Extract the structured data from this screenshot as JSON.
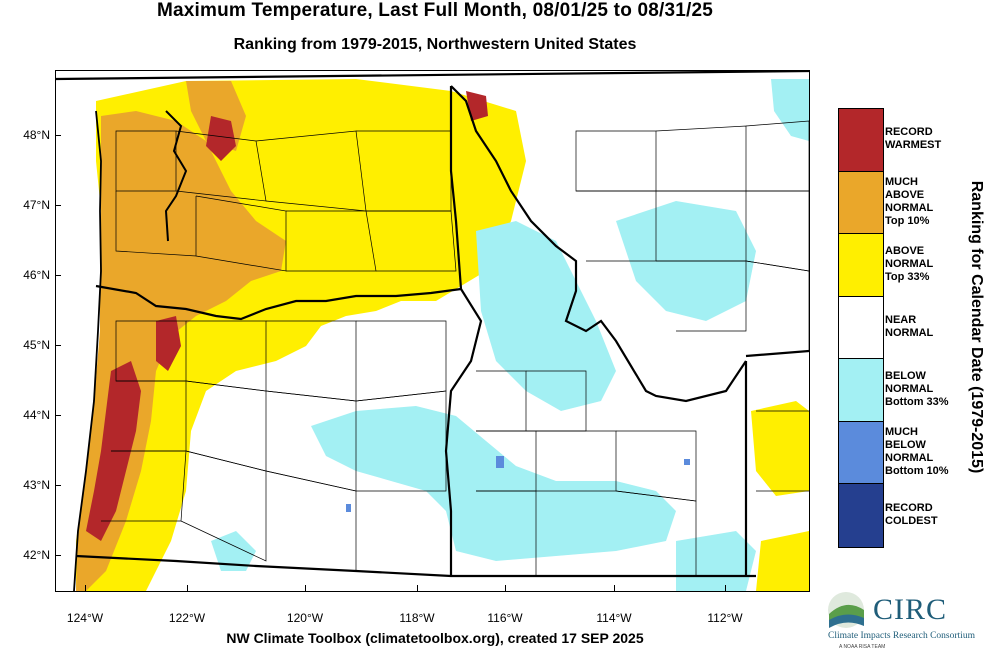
{
  "header": {
    "title": "Maximum Temperature, Last Full Month, 08/01/25 to 08/31/25",
    "subtitle": "Ranking from 1979-2015, Northwestern United States"
  },
  "axes": {
    "lat_labels": [
      "48°N",
      "47°N",
      "46°N",
      "45°N",
      "44°N",
      "43°N",
      "42°N"
    ],
    "lon_labels": [
      "124°W",
      "122°W",
      "120°W",
      "118°W",
      "116°W",
      "114°W",
      "112°W"
    ]
  },
  "legend": {
    "title": "Ranking for Calendar Date (1979-2015)",
    "items": [
      {
        "label_lines": [
          "RECORD",
          "WARMEST"
        ],
        "color": "#b3272a"
      },
      {
        "label_lines": [
          "MUCH",
          "ABOVE",
          "NORMAL",
          "Top 10%"
        ],
        "color": "#eaa72a"
      },
      {
        "label_lines": [
          "ABOVE",
          "NORMAL",
          "Top 33%"
        ],
        "color": "#ffef00"
      },
      {
        "label_lines": [
          "NEAR",
          "NORMAL"
        ],
        "color": "#ffffff"
      },
      {
        "label_lines": [
          "BELOW",
          "NORMAL",
          "Bottom 33%"
        ],
        "color": "#a3f0f3"
      },
      {
        "label_lines": [
          "MUCH",
          "BELOW",
          "NORMAL",
          "Bottom 10%"
        ],
        "color": "#5b8bdc"
      },
      {
        "label_lines": [
          "RECORD",
          "COLDEST"
        ],
        "color": "#253f8f"
      }
    ]
  },
  "footer": {
    "credit": "NW Climate Toolbox (climatetoolbox.org), created 17 SEP 2025"
  },
  "logo": {
    "name": "CIRC",
    "full_name": "Climate Impacts Research Consortium",
    "tagline": "A NOAA RISA TEAM"
  },
  "colors": {
    "record_warmest": "#b3272a",
    "much_above": "#eaa72a",
    "above": "#ffef00",
    "near": "#ffffff",
    "below": "#a3f0f3",
    "much_below": "#5b8bdc",
    "record_coldest": "#253f8f"
  }
}
